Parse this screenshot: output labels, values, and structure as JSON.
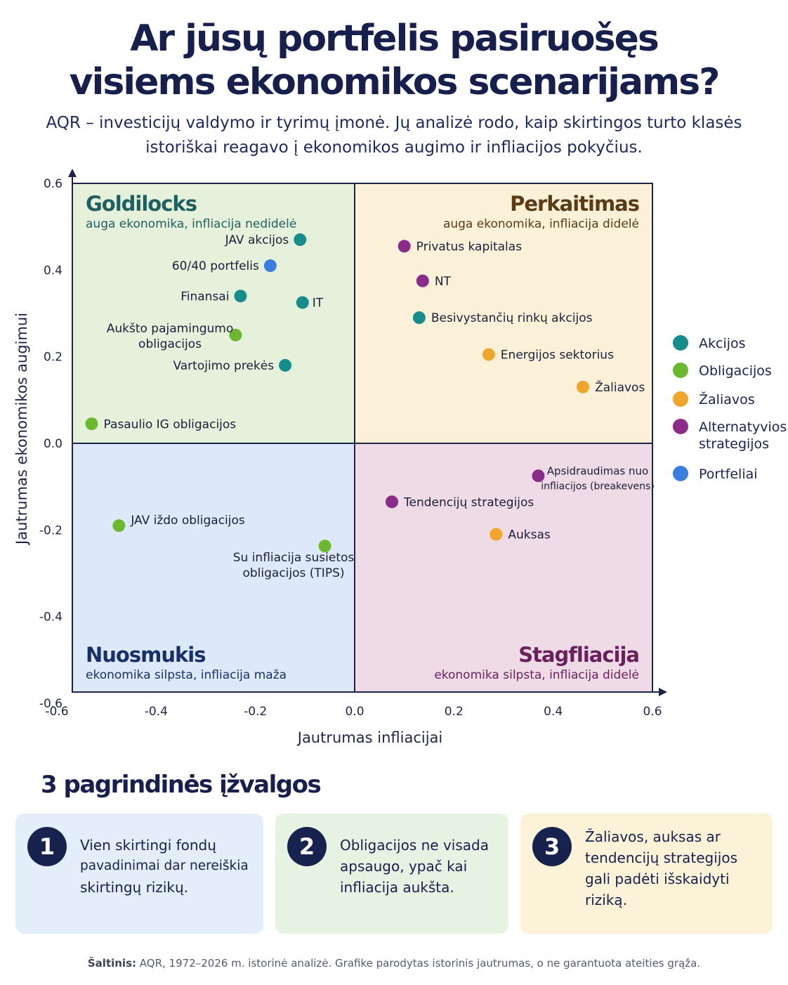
{
  "header": {
    "title_lines": [
      "Ar jūsų portfelis pasiruošęs",
      "visiems ekonomikos scenarijams?"
    ],
    "subtitle_lines": [
      "AQR – investicijų valdymo ir tyrimų įmonė. Jų analizė rodo, kaip skirtingos turto klasės",
      "istoriškai reagavo į ekonomikos augimo ir infliacijos pokyčius."
    ]
  },
  "chart_data": {
    "type": "scatter",
    "title": "",
    "xlabel": "Jautrumas infliacijai",
    "ylabel": "Jautrumas ekonomikos augimui",
    "xlim": [
      -0.6,
      0.6
    ],
    "ylim": [
      -0.6,
      0.6
    ],
    "x_ticks": [
      "-0.6",
      "-0.4",
      "-0.2",
      "0.0",
      "0.2",
      "0.4",
      "0.6"
    ],
    "y_ticks": [
      "0.6",
      "0.4",
      "0.2",
      "0.0",
      "-0.2",
      "-0.4",
      "-0.6"
    ],
    "grid": false,
    "legend_position": "right",
    "quadrants": [
      {
        "name": "Goldilocks",
        "description": "auga ekonomika,  infliacija nedidelė",
        "position": "top-left",
        "color": "#e6f1dc",
        "title_color": "#1f5f60"
      },
      {
        "name": "Perkaitimas",
        "description": "auga ekonomika, infliacija didelė",
        "position": "top-right",
        "color": "#fbf1d9",
        "title_color": "#5a3b14"
      },
      {
        "name": "Nuosmukis",
        "description": "ekonomika silpsta, infliacija maža",
        "position": "bottom-left",
        "color": "#dde9f8",
        "title_color": "#18306a"
      },
      {
        "name": "Stagfliacija",
        "description": "ekonomika silpsta, infliacija didelė",
        "position": "bottom-right",
        "color": "#eedbe6",
        "title_color": "#6b1f5c"
      }
    ],
    "legend": [
      {
        "label": "Akcijos",
        "color": "#168d8a"
      },
      {
        "label": "Obligacijos",
        "color": "#6cb82f"
      },
      {
        "label": "Žaliavos",
        "color": "#f0a52c"
      },
      {
        "label": "Alternatyvios strategijos",
        "color": "#8b2b8a"
      },
      {
        "label": "Portfeliai",
        "color": "#3a7de0"
      }
    ],
    "points": [
      {
        "label": "JAV akcijos",
        "x": -0.11,
        "y": 0.47,
        "group": "Akcijos"
      },
      {
        "label": "60/40 portfelis",
        "x": -0.17,
        "y": 0.41,
        "group": "Portfeliai"
      },
      {
        "label": "Finansai",
        "x": -0.23,
        "y": 0.34,
        "group": "Akcijos"
      },
      {
        "label": "IT",
        "x": -0.105,
        "y": 0.325,
        "group": "Akcijos"
      },
      {
        "label": "Aukšto pajamingumo obligacijos",
        "x": -0.24,
        "y": 0.25,
        "group": "Obligacijos"
      },
      {
        "label": "Vartojimo prekės",
        "x": -0.14,
        "y": 0.18,
        "group": "Akcijos"
      },
      {
        "label": "Pasaulio IG obligacijos",
        "x": -0.53,
        "y": 0.045,
        "group": "Obligacijos"
      },
      {
        "label": "Privatus kapitalas",
        "x": 0.1,
        "y": 0.455,
        "group": "Alternatyvios strategijos"
      },
      {
        "label": "NT",
        "x": 0.137,
        "y": 0.375,
        "group": "Alternatyvios strategijos"
      },
      {
        "label": "Besivystančių rinkų akcijos",
        "x": 0.13,
        "y": 0.29,
        "group": "Akcijos"
      },
      {
        "label": "Energijos sektorius",
        "x": 0.27,
        "y": 0.205,
        "group": "Žaliavos"
      },
      {
        "label": "Žaliavos",
        "x": 0.46,
        "y": 0.13,
        "group": "Žaliavos"
      },
      {
        "label": "Apsidraudimas nuo infliacijos (breakevens)",
        "x": 0.37,
        "y": -0.075,
        "group": "Alternatyvios strategijos"
      },
      {
        "label": "Tendencijų strategijos",
        "x": 0.075,
        "y": -0.135,
        "group": "Alternatyvios strategijos"
      },
      {
        "label": "Auksas",
        "x": 0.285,
        "y": -0.21,
        "group": "Žaliavos"
      },
      {
        "label": "JAV iždo obligacijos",
        "x": -0.475,
        "y": -0.19,
        "group": "Obligacijos"
      },
      {
        "label": "Su infliacija susietos obligacijos (TIPS)",
        "x": -0.06,
        "y": -0.237,
        "group": "Obligacijos"
      }
    ]
  },
  "insights": {
    "title": "3 pagrindinės įžvalgos",
    "cards": [
      {
        "number": "1",
        "lines": [
          "Vien skirtingi fondų",
          "pavadinimai dar nereiškia",
          "skirtingų rizikų."
        ],
        "color": "#e3eefa"
      },
      {
        "number": "2",
        "lines": [
          "Obligacijos ne visada",
          "apsaugo, ypač kai",
          "infliacija aukšta."
        ],
        "color": "#e6f3e3"
      },
      {
        "number": "3",
        "lines": [
          "Žaliavos, auksas ar",
          "tendencijų strategijos",
          "gali padėti išskaidyti",
          "riziką."
        ],
        "color": "#fbf2d8"
      }
    ]
  },
  "source": {
    "label": "Šaltinis:",
    "text": " AQR, 1972–2026 m. istorinė analizė. Grafike parodytas istorinis jautrumas, o ne garantuota ateities grąža."
  }
}
